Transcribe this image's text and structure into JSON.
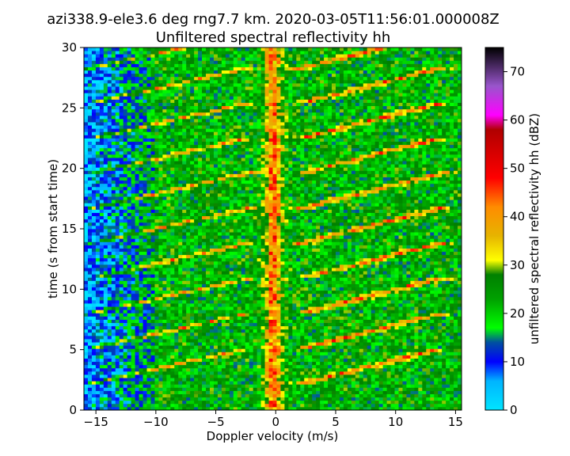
{
  "chart_data": {
    "type": "heatmap",
    "title_line1": "azi338.9-ele3.6 deg rng7.7 km. 2020-03-05T11:56:01.000008Z",
    "title_line2": "Unfiltered spectral reflectivity hh",
    "xlabel": "Doppler velocity (m/s)",
    "ylabel": "time (s from start time)",
    "xlim": [
      -16,
      15.5
    ],
    "ylim": [
      0,
      30
    ],
    "x_ticks": [
      -15,
      -10,
      -5,
      0,
      5,
      10,
      15
    ],
    "x_tick_labels": [
      "−15",
      "−10",
      "−5",
      "0",
      "5",
      "10",
      "15"
    ],
    "y_ticks": [
      0,
      5,
      10,
      15,
      20,
      25,
      30
    ],
    "y_tick_labels": [
      "0",
      "5",
      "10",
      "15",
      "20",
      "25",
      "30"
    ],
    "colorbar": {
      "label": "unfiltered spectral reflectivity hh (dBZ)",
      "range": [
        0,
        75
      ],
      "ticks": [
        0,
        10,
        20,
        30,
        40,
        50,
        60,
        70
      ],
      "tick_labels": [
        "0",
        "10",
        "20",
        "30",
        "40",
        "50",
        "60",
        "70"
      ],
      "colors": [
        {
          "v": 0,
          "c": "#00e5ff"
        },
        {
          "v": 6,
          "c": "#00b4ff"
        },
        {
          "v": 10,
          "c": "#0000ff"
        },
        {
          "v": 14,
          "c": "#0050a0"
        },
        {
          "v": 17,
          "c": "#00ff00"
        },
        {
          "v": 23,
          "c": "#00a000"
        },
        {
          "v": 28,
          "c": "#008000"
        },
        {
          "v": 31,
          "c": "#ffff00"
        },
        {
          "v": 36,
          "c": "#e6b400"
        },
        {
          "v": 42,
          "c": "#ff8c00"
        },
        {
          "v": 48,
          "c": "#ff0000"
        },
        {
          "v": 54,
          "c": "#d00000"
        },
        {
          "v": 58,
          "c": "#b00000"
        },
        {
          "v": 61,
          "c": "#ff00ff"
        },
        {
          "v": 67,
          "c": "#9955cc"
        },
        {
          "v": 75,
          "c": "#000000"
        }
      ]
    },
    "grid": false,
    "legend": "none",
    "description_of_field": {
      "background_level_dbz": 22,
      "low_level_region": "x < -10 at most times",
      "central_ridge_velocity": -0.2,
      "central_ridge_level_dbz": 42,
      "sweep_period_s": 2.9,
      "sweep_start_times_s": [
        2.3,
        5.2,
        8.1,
        11.0,
        13.9,
        16.8,
        19.7,
        22.6,
        25.5,
        28.4
      ]
    }
  }
}
